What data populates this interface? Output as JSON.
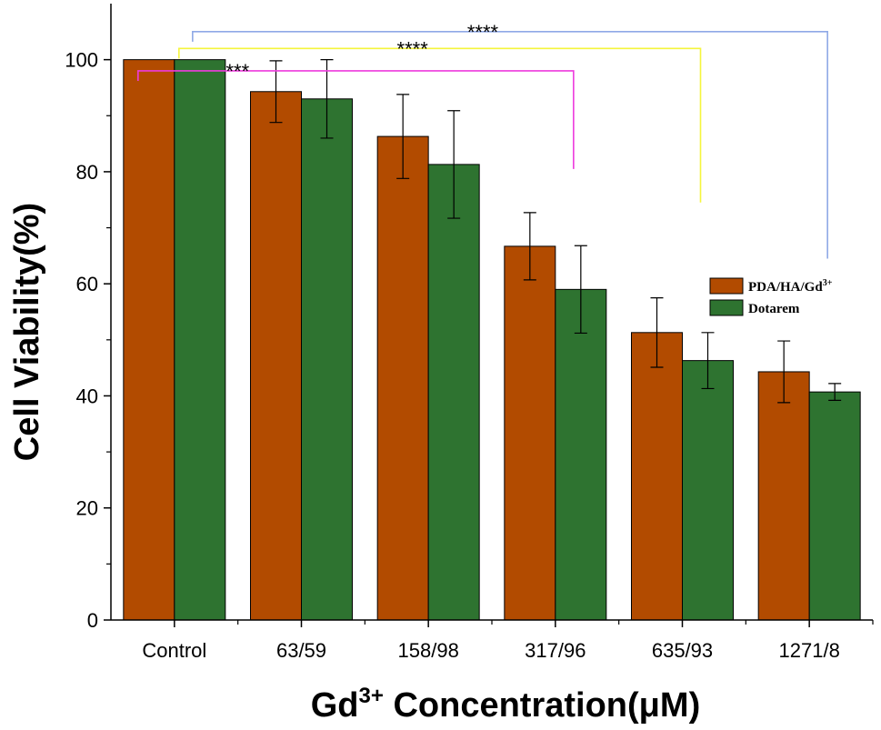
{
  "chart_data": {
    "type": "bar",
    "xlabel_main": "Gd",
    "xlabel_sup": "3+",
    "xlabel_rest": " Concentration(μM)",
    "ylabel": "Cell Viability(%)",
    "categories": [
      "Control",
      "63/59",
      "158/98",
      "317/96",
      "635/93",
      "1271/8"
    ],
    "ylim": [
      0,
      110
    ],
    "yticks": [
      0,
      20,
      40,
      60,
      80,
      100
    ],
    "series": [
      {
        "legend_main": "PDA/HA/Gd",
        "legend_sup": "3+",
        "color": "#b24b00",
        "values": [
          100,
          94.3,
          86.3,
          66.7,
          51.3,
          44.3
        ],
        "errors": [
          0,
          5.5,
          7.5,
          6.0,
          6.2,
          5.5
        ]
      },
      {
        "legend_main": "Dotarem",
        "legend_sup": "",
        "color": "#2e7330",
        "values": [
          100,
          93.0,
          81.3,
          59.0,
          46.3,
          40.7
        ],
        "errors": [
          0,
          7.0,
          9.6,
          7.8,
          5.0,
          1.5
        ]
      }
    ],
    "significance": [
      {
        "label": "****",
        "from_category": 0,
        "to_category": 5,
        "color": "#8fa9e6",
        "level": 105.0,
        "drop_to": 64.5
      },
      {
        "label": "****",
        "from_category": 0,
        "to_category": 4,
        "color": "#f5f53c",
        "level": 102.0,
        "drop_to": 74.5
      },
      {
        "label": "***",
        "from_category": 0,
        "to_category": 3,
        "color": "#ee3bdd",
        "level": 98.0,
        "drop_to": 80.5
      }
    ],
    "legend_position": "right-center",
    "grid": false
  }
}
